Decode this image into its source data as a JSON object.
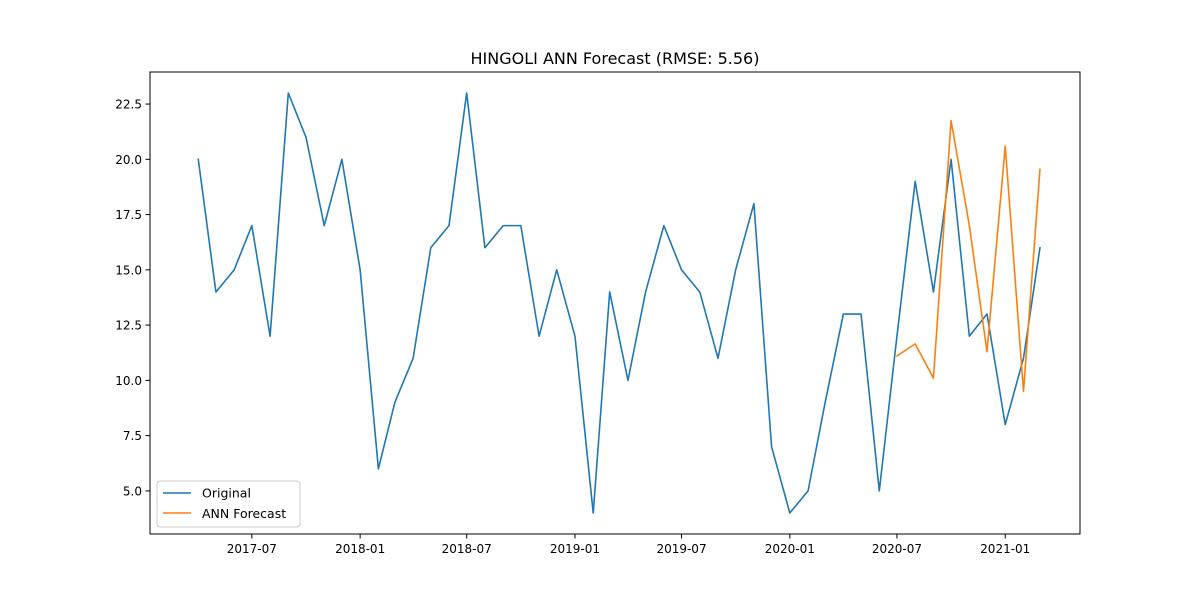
{
  "chart_data": {
    "type": "line",
    "title": "HINGOLI ANN Forecast (RMSE: 5.56)",
    "xlabel": "",
    "ylabel": "",
    "x_ticks": [
      "2017-07",
      "2018-01",
      "2018-07",
      "2019-01",
      "2019-07",
      "2020-01",
      "2020-07",
      "2021-01"
    ],
    "y_ticks": [
      "5.0",
      "7.5",
      "10.0",
      "12.5",
      "15.0",
      "17.5",
      "20.0",
      "22.5"
    ],
    "xlim": [
      "2017-01-09",
      "2021-05-08"
    ],
    "ylim": [
      3.05,
      23.95
    ],
    "grid": false,
    "legend_position": "lower-left",
    "series": [
      {
        "name": "Original",
        "color": "#1f77b4",
        "x": [
          "2017-04-01",
          "2017-05-01",
          "2017-06-01",
          "2017-07-01",
          "2017-08-01",
          "2017-09-01",
          "2017-10-01",
          "2017-11-01",
          "2017-12-01",
          "2018-01-01",
          "2018-02-01",
          "2018-03-01",
          "2018-04-01",
          "2018-05-01",
          "2018-06-01",
          "2018-07-01",
          "2018-08-01",
          "2018-09-01",
          "2018-10-01",
          "2018-11-01",
          "2018-12-01",
          "2019-01-01",
          "2019-02-01",
          "2019-03-01",
          "2019-04-01",
          "2019-05-01",
          "2019-06-01",
          "2019-07-01",
          "2019-08-01",
          "2019-09-01",
          "2019-10-01",
          "2019-11-01",
          "2019-12-01",
          "2020-01-01",
          "2020-02-01",
          "2020-03-01",
          "2020-04-01",
          "2020-05-01",
          "2020-06-01",
          "2020-07-01",
          "2020-08-01",
          "2020-09-01",
          "2020-10-01",
          "2020-11-01",
          "2020-12-01",
          "2021-01-01",
          "2021-02-01",
          "2021-03-01"
        ],
        "values": [
          20,
          14,
          15,
          17,
          12,
          23,
          21,
          17,
          20,
          15,
          6,
          9,
          11,
          16,
          17,
          23,
          16,
          17,
          17,
          12,
          15,
          12,
          4,
          14,
          10,
          14,
          17,
          15,
          14,
          11,
          15,
          18,
          7,
          4,
          5,
          9,
          13,
          13,
          5,
          12,
          19,
          14,
          20,
          12,
          13,
          8,
          11,
          16
        ]
      },
      {
        "name": "ANN Forecast",
        "color": "#ff7f0e",
        "x": [
          "2020-07-01",
          "2020-08-01",
          "2020-09-01",
          "2020-10-01",
          "2020-11-01",
          "2020-12-01",
          "2021-01-01",
          "2021-02-01",
          "2021-03-01"
        ],
        "values": [
          11.1,
          11.65,
          10.1,
          21.75,
          17.0,
          11.3,
          20.6,
          9.5,
          19.55
        ]
      }
    ]
  }
}
